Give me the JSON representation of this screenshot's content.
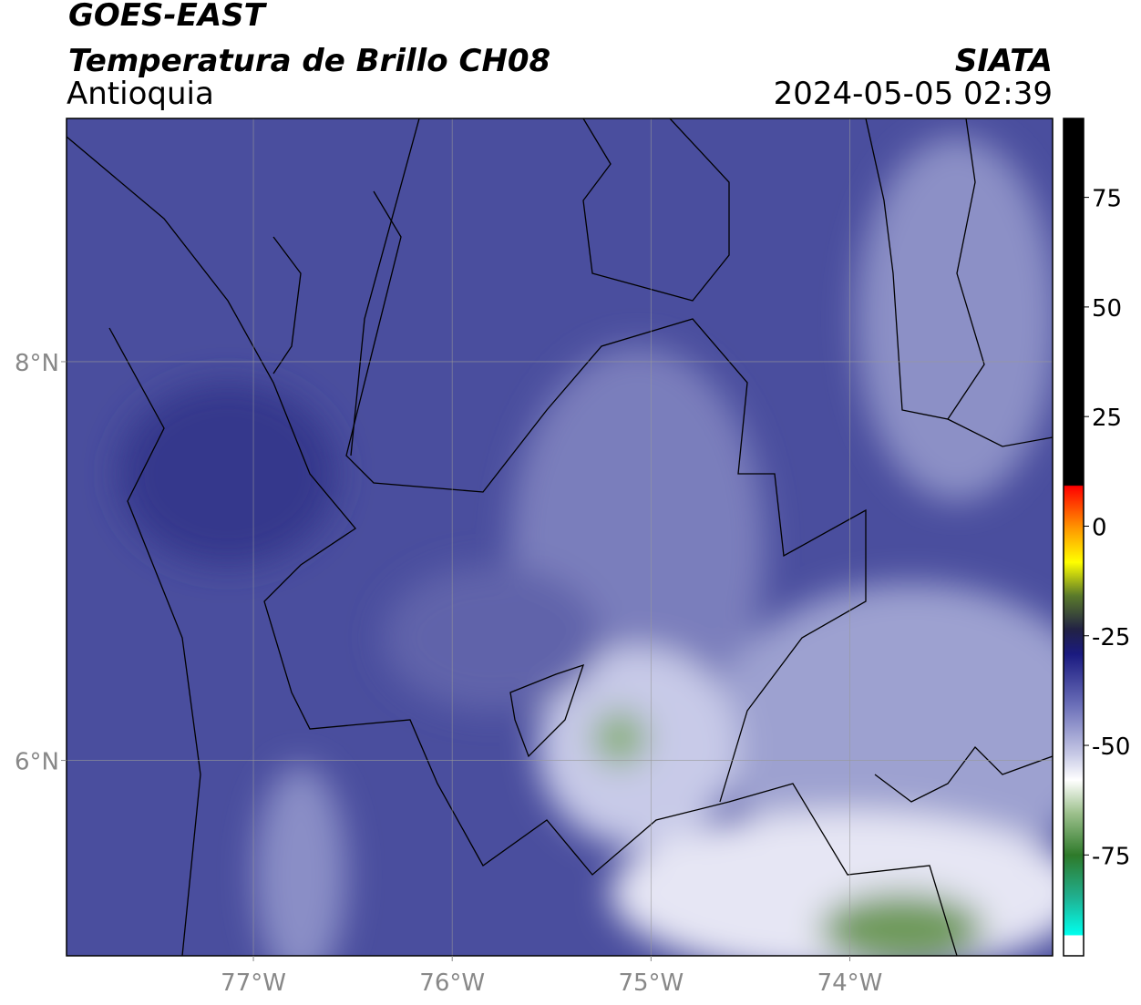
{
  "header": {
    "satellite": "GOES-EAST",
    "product": "Temperatura de Brillo CH08",
    "region": "Antioquia",
    "source": "SIATA",
    "datetime": "2024-05-05 02:39"
  },
  "map": {
    "xlim": [
      -77.94,
      -72.98
    ],
    "ylim": [
      5.02,
      9.22
    ],
    "xticks": [
      {
        "value": -77,
        "label": "77°W"
      },
      {
        "value": -76,
        "label": "76°W"
      },
      {
        "value": -75,
        "label": "75°W"
      },
      {
        "value": -74,
        "label": "74°W"
      }
    ],
    "yticks": [
      {
        "value": 8,
        "label": "8°N"
      },
      {
        "value": 6,
        "label": "6°N"
      }
    ],
    "grid": true
  },
  "colorbar": {
    "lim": [
      -98,
      93
    ],
    "ticks": [
      75,
      50,
      25,
      0,
      -25,
      -50,
      -75
    ]
  }
}
